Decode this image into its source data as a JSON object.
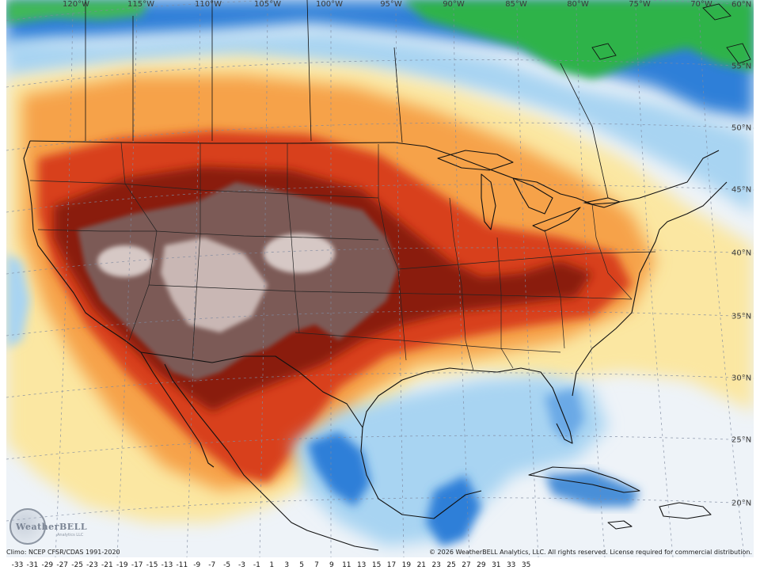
{
  "map": {
    "lon_labels": [
      "120°W",
      "115°W",
      "110°W",
      "105°W",
      "100°W",
      "95°W",
      "90°W",
      "85°W",
      "80°W",
      "75°W",
      "70°W"
    ],
    "lat_labels": [
      "60°N",
      "55°N",
      "50°N",
      "45°N",
      "40°N",
      "35°N",
      "30°N",
      "25°N",
      "20°N"
    ]
  },
  "footer": {
    "climo_note": "Climo: NCEP CFSR/CDAS 1991-2020",
    "copyright": "© 2026 WeatherBELL Analytics, LLC. All rights reserved. License required for commercial distribution."
  },
  "logo": {
    "text": "WeatherBELL",
    "sub": "Analytics LLC"
  },
  "colorbar": {
    "ticks": [
      "-33",
      "-31",
      "-29",
      "-27",
      "-25",
      "-23",
      "-21",
      "-19",
      "-17",
      "-15",
      "-13",
      "-11",
      "-9",
      "-7",
      "-5",
      "-3",
      "-1",
      "1",
      "3",
      "5",
      "7",
      "9",
      "11",
      "13",
      "15",
      "17",
      "19",
      "21",
      "23",
      "25",
      "27",
      "29",
      "31",
      "33",
      "35"
    ]
  },
  "colors": {
    "cold_green": "#2fb34a",
    "cold_blue": "#2f7fd8",
    "cool_lightblue": "#a8d4f2",
    "near_zero": "#eef3f8",
    "warm_yellow": "#fbe7a2",
    "warm_orange": "#f6a24a",
    "hot_red": "#d8401c",
    "very_hot_darkred": "#8a1c0c",
    "extreme_brown": "#7b5a56",
    "extreme_light": "#c9b7b4"
  }
}
